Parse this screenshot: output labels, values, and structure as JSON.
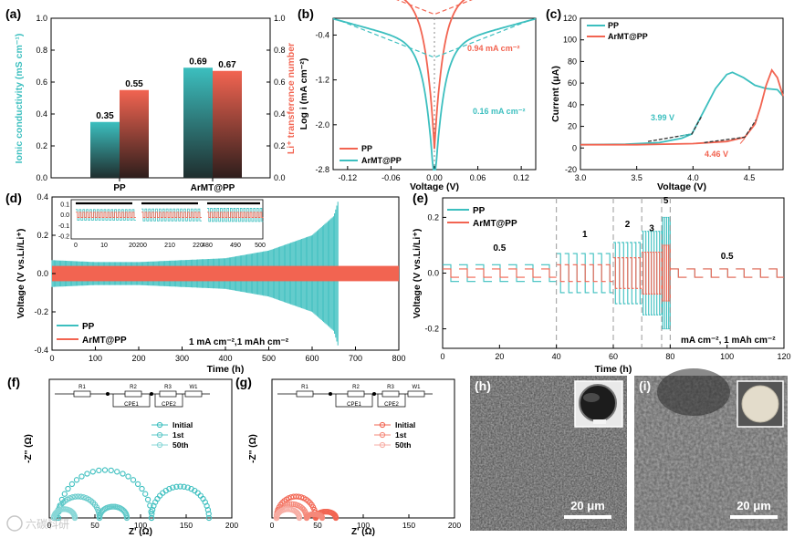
{
  "colors": {
    "teal": "#3cbfbf",
    "red": "#f26451",
    "dash": "#333333",
    "sem_bg": "#6a6a6a"
  },
  "chart_data": [
    {
      "id": "a",
      "label": "(a)",
      "type": "bar",
      "ylabel": "Ionic conductivity (mS cm⁻¹)",
      "y2label": "Li⁺ transference number",
      "categories": [
        "PP",
        "ArMT@PP"
      ],
      "series": [
        {
          "name": "Ionic conductivity",
          "values": [
            0.35,
            0.69
          ],
          "value_labels": [
            "0.35",
            "0.69"
          ]
        },
        {
          "name": "Li+ transference number",
          "values": [
            0.55,
            0.67
          ],
          "value_labels": [
            "0.55",
            "0.67"
          ]
        }
      ],
      "ylim": [
        0,
        1.0
      ],
      "y2lim": [
        0,
        1.0
      ],
      "yticks": [
        "0.0",
        "0.2",
        "0.4",
        "0.6",
        "0.8",
        "1.0"
      ]
    },
    {
      "id": "b",
      "label": "(b)",
      "type": "line",
      "xlabel": "Voltage (V)",
      "ylabel": "Log i (mA cm⁻²)",
      "xlim": [
        -0.14,
        0.14
      ],
      "ylim": [
        -2.8,
        -0.1
      ],
      "xticks": [
        "-0.12",
        "-0.06",
        "0.00",
        "0.06",
        "0.12"
      ],
      "yticks": [
        "-2.8",
        "-2.0",
        "-1.2",
        "-0.4"
      ],
      "annotations": [
        "0.94 mA cm⁻²",
        "0.16 mA cm⁻²"
      ],
      "legend": [
        "PP",
        "ArMT@PP"
      ],
      "series": [
        {
          "name": "PP",
          "i0_log": -0.03
        },
        {
          "name": "ArMT@PP",
          "i0_log": -0.8
        }
      ]
    },
    {
      "id": "c",
      "label": "(c)",
      "type": "line",
      "xlabel": "Voltage (V)",
      "ylabel": "Current (μA)",
      "xlim": [
        3.0,
        4.8
      ],
      "ylim": [
        -20,
        120
      ],
      "xticks": [
        "3.0",
        "3.5",
        "4.0",
        "4.5"
      ],
      "yticks": [
        "-20",
        "0",
        "20",
        "40",
        "60",
        "80",
        "100",
        "120"
      ],
      "annotations": [
        "3.99 V",
        "4.46 V"
      ],
      "legend": [
        "PP",
        "ArMT@PP"
      ],
      "series": [
        {
          "name": "PP",
          "x": [
            3.0,
            3.4,
            3.7,
            3.9,
            3.99,
            4.1,
            4.2,
            4.3,
            4.35,
            4.45,
            4.55,
            4.65,
            4.75,
            4.8
          ],
          "y": [
            3,
            3.5,
            5,
            9,
            13,
            35,
            55,
            68,
            70,
            65,
            58,
            55,
            54,
            48
          ]
        },
        {
          "name": "ArMT@PP",
          "x": [
            3.0,
            3.5,
            4.0,
            4.3,
            4.46,
            4.55,
            4.6,
            4.65,
            4.7,
            4.75,
            4.8
          ],
          "y": [
            3,
            3,
            4,
            6,
            10,
            22,
            38,
            58,
            72,
            65,
            48
          ]
        }
      ]
    },
    {
      "id": "d",
      "label": "(d)",
      "type": "line",
      "xlabel": "Time (h)",
      "ylabel": "Voltage (V vs.Li/Li⁺)",
      "xlim": [
        0,
        800
      ],
      "ylim": [
        -0.4,
        0.4
      ],
      "xticks": [
        "0",
        "100",
        "200",
        "300",
        "400",
        "500",
        "600",
        "700",
        "800"
      ],
      "yticks": [
        "-0.4",
        "-0.2",
        "0.0",
        "0.2",
        "0.4"
      ],
      "annotations": [
        "1 mA cm⁻²,1 mAh cm⁻²"
      ],
      "legend": [
        "PP",
        "ArMT@PP"
      ],
      "inset": {
        "xticks": [
          "0",
          "10",
          "20",
          "200",
          "210",
          "220",
          "480",
          "490",
          "500"
        ],
        "yticks": [
          "0.1",
          "0.0",
          "-0.1",
          "-0.2"
        ]
      },
      "series": [
        {
          "name": "PP",
          "envelope_t": [
            0,
            100,
            200,
            300,
            400,
            500,
            600,
            650,
            660
          ],
          "envelope_v": [
            0.07,
            0.06,
            0.06,
            0.07,
            0.08,
            0.12,
            0.2,
            0.3,
            0.38
          ]
        },
        {
          "name": "ArMT@PP",
          "envelope_t": [
            0,
            800
          ],
          "envelope_v": [
            0.04,
            0.04
          ]
        }
      ]
    },
    {
      "id": "e",
      "label": "(e)",
      "type": "line",
      "xlabel": "Time (h)",
      "ylabel": "Voltage (V vs.Li/Li⁺)",
      "xlim": [
        0,
        120
      ],
      "ylim": [
        -0.27,
        0.27
      ],
      "xticks": [
        "0",
        "20",
        "40",
        "60",
        "80",
        "100",
        "120"
      ],
      "yticks": [
        "-0.2",
        "0.0",
        "0.2"
      ],
      "rate_labels": [
        "0.5",
        "1",
        "2",
        "3",
        "5",
        "0.5"
      ],
      "annotations": [
        "mA cm⁻², 1 mAh cm⁻²"
      ],
      "legend": [
        "PP",
        "ArMT@PP"
      ],
      "segments": [
        {
          "rate": 0.5,
          "t": [
            0,
            40
          ],
          "pp": 0.03,
          "ar": 0.015
        },
        {
          "rate": 1,
          "t": [
            40,
            60
          ],
          "pp": 0.07,
          "ar": 0.03
        },
        {
          "rate": 2,
          "t": [
            60,
            70
          ],
          "pp": 0.11,
          "ar": 0.055
        },
        {
          "rate": 3,
          "t": [
            70,
            77
          ],
          "pp": 0.15,
          "ar": 0.075
        },
        {
          "rate": 5,
          "t": [
            77,
            80
          ],
          "pp": 0.2,
          "ar": 0.1
        },
        {
          "rate": 0.5,
          "t": [
            80,
            120
          ],
          "pp": 0.015,
          "ar": 0.015
        }
      ]
    },
    {
      "id": "f",
      "label": "(f)",
      "type": "scatter",
      "xlabel": "Z' (Ω)",
      "ylabel": "-Z'' (Ω)",
      "xlim": [
        0,
        200
      ],
      "ylim": [
        0,
        110
      ],
      "xticks": [
        "0",
        "50",
        "100",
        "150",
        "200"
      ],
      "legend": [
        "Initial",
        "1st",
        "50th"
      ],
      "circuit": [
        "R1",
        "R2",
        "R3",
        "W1",
        "CPE1",
        "CPE2"
      ],
      "series": [
        {
          "name": "Initial",
          "arcs": [
            [
              10,
              112,
              38
            ],
            [
              112,
              175,
              25
            ]
          ]
        },
        {
          "name": "1st",
          "arcs": [
            [
              8,
              55,
              17
            ],
            [
              55,
              85,
              9
            ]
          ]
        },
        {
          "name": "50th",
          "arcs": [
            [
              5,
              28,
              7
            ]
          ]
        }
      ]
    },
    {
      "id": "g",
      "label": "(g)",
      "type": "scatter",
      "xlabel": "Z' (Ω)",
      "ylabel": "-Z'' (Ω)",
      "xlim": [
        0,
        200
      ],
      "ylim": [
        0,
        110
      ],
      "xticks": [
        "0",
        "50",
        "100",
        "150",
        "200"
      ],
      "legend": [
        "Initial",
        "1st",
        "50th"
      ],
      "circuit": [
        "R1",
        "R2",
        "R3",
        "W1",
        "CPE1",
        "CPE2"
      ],
      "series": [
        {
          "name": "Initial",
          "arcs": [
            [
              5,
              48,
              17
            ],
            [
              48,
              70,
              5
            ]
          ]
        },
        {
          "name": "1st",
          "arcs": [
            [
              5,
              38,
              11
            ],
            [
              38,
              55,
              3
            ]
          ]
        },
        {
          "name": "50th",
          "arcs": [
            [
              5,
              30,
              7
            ]
          ]
        }
      ]
    }
  ],
  "sem": [
    {
      "id": "h",
      "label": "(h)",
      "scale_bar": "20 μm"
    },
    {
      "id": "i",
      "label": "(i)",
      "scale_bar": "20 μm"
    }
  ],
  "watermark": "六碳科研"
}
